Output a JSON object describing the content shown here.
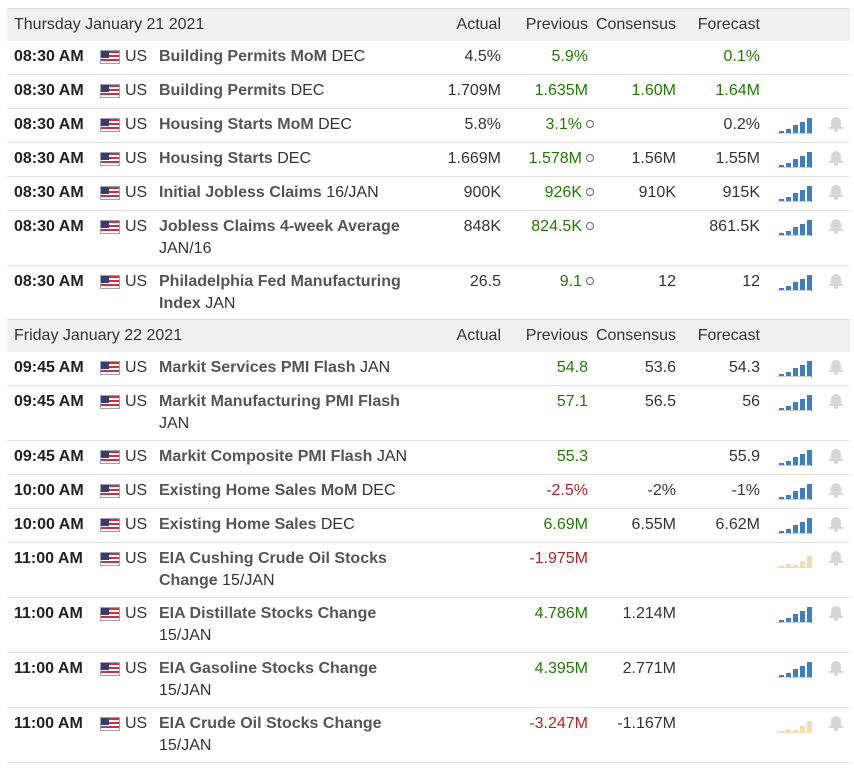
{
  "icons": {
    "flag": "us-flag-icon",
    "chart": "bar-chart-icon",
    "alert": "bell-icon",
    "revised": "revised-dot-icon"
  },
  "colors": {
    "positive": "#217a00",
    "negative": "#b22222",
    "header_bg": "#f0f0f0"
  },
  "days": [
    {
      "title": "Thursday January 21 2021",
      "headers": {
        "actual": "Actual",
        "previous": "Previous",
        "consensus": "Consensus",
        "forecast": "Forecast"
      },
      "events": [
        {
          "time": "08:30 AM",
          "country": "US",
          "name": "Building Permits MoM",
          "ref": "DEC",
          "actual": "4.5%",
          "previous": "5.9%",
          "prev_trend": "up",
          "revised": false,
          "consensus": "",
          "forecast": "0.1%",
          "fc_trend": "up",
          "chart": "none"
        },
        {
          "time": "08:30 AM",
          "country": "US",
          "name": "Building Permits",
          "ref": "DEC",
          "actual": "1.709M",
          "previous": "1.635M",
          "prev_trend": "up",
          "revised": false,
          "consensus": "1.60M",
          "cons_trend": "up",
          "forecast": "1.64M",
          "fc_trend": "up",
          "chart": "none"
        },
        {
          "time": "08:30 AM",
          "country": "US",
          "name": "Housing Starts MoM",
          "ref": "DEC",
          "actual": "5.8%",
          "previous": "3.1%",
          "prev_trend": "up",
          "revised": true,
          "consensus": "",
          "forecast": "0.2%",
          "chart": "blue"
        },
        {
          "time": "08:30 AM",
          "country": "US",
          "name": "Housing Starts",
          "ref": "DEC",
          "actual": "1.669M",
          "previous": "1.578M",
          "prev_trend": "up",
          "revised": true,
          "consensus": "1.56M",
          "forecast": "1.55M",
          "chart": "blue"
        },
        {
          "time": "08:30 AM",
          "country": "US",
          "name": "Initial Jobless Claims",
          "ref": "16/JAN",
          "actual": "900K",
          "previous": "926K",
          "prev_trend": "up",
          "revised": true,
          "consensus": "910K",
          "forecast": "915K",
          "chart": "blue"
        },
        {
          "time": "08:30 AM",
          "country": "US",
          "name": "Jobless Claims 4-week Average",
          "ref": "JAN/16",
          "actual": "848K",
          "previous": "824.5K",
          "prev_trend": "up",
          "revised": true,
          "consensus": "",
          "forecast": "861.5K",
          "chart": "blue"
        },
        {
          "time": "08:30 AM",
          "country": "US",
          "name": "Philadelphia Fed Manufacturing Index",
          "ref": "JAN",
          "actual": "26.5",
          "previous": "9.1",
          "prev_trend": "up",
          "revised": true,
          "consensus": "12",
          "forecast": "12",
          "chart": "blue"
        }
      ]
    },
    {
      "title": "Friday January 22 2021",
      "headers": {
        "actual": "Actual",
        "previous": "Previous",
        "consensus": "Consensus",
        "forecast": "Forecast"
      },
      "events": [
        {
          "time": "09:45 AM",
          "country": "US",
          "name": "Markit Services PMI Flash",
          "ref": "JAN",
          "actual": "",
          "previous": "54.8",
          "prev_trend": "up",
          "revised": false,
          "consensus": "53.6",
          "forecast": "54.3",
          "chart": "blue"
        },
        {
          "time": "09:45 AM",
          "country": "US",
          "name": "Markit Manufacturing PMI Flash",
          "ref": "JAN",
          "actual": "",
          "previous": "57.1",
          "prev_trend": "up",
          "revised": false,
          "consensus": "56.5",
          "forecast": "56",
          "chart": "blue"
        },
        {
          "time": "09:45 AM",
          "country": "US",
          "name": "Markit Composite PMI Flash",
          "ref": "JAN",
          "actual": "",
          "previous": "55.3",
          "prev_trend": "up",
          "revised": false,
          "consensus": "",
          "forecast": "55.9",
          "chart": "blue"
        },
        {
          "time": "10:00 AM",
          "country": "US",
          "name": "Existing Home Sales MoM",
          "ref": "DEC",
          "actual": "",
          "previous": "-2.5%",
          "prev_trend": "down",
          "revised": false,
          "consensus": "-2%",
          "forecast": "-1%",
          "chart": "blue"
        },
        {
          "time": "10:00 AM",
          "country": "US",
          "name": "Existing Home Sales",
          "ref": "DEC",
          "actual": "",
          "previous": "6.69M",
          "prev_trend": "up",
          "revised": false,
          "consensus": "6.55M",
          "forecast": "6.62M",
          "chart": "blue"
        },
        {
          "time": "11:00 AM",
          "country": "US",
          "name": "EIA Cushing Crude Oil Stocks Change",
          "ref": "15/JAN",
          "actual": "",
          "previous": "-1.975M",
          "prev_trend": "down",
          "revised": false,
          "consensus": "",
          "forecast": "",
          "chart": "tan"
        },
        {
          "time": "11:00 AM",
          "country": "US",
          "name": "EIA Distillate Stocks Change",
          "ref": "15/JAN",
          "actual": "",
          "previous": "4.786M",
          "prev_trend": "up",
          "revised": false,
          "consensus": "1.214M",
          "forecast": "",
          "chart": "blue"
        },
        {
          "time": "11:00 AM",
          "country": "US",
          "name": "EIA Gasoline Stocks Change",
          "ref": "15/JAN",
          "actual": "",
          "previous": "4.395M",
          "prev_trend": "up",
          "revised": false,
          "consensus": "2.771M",
          "forecast": "",
          "chart": "blue"
        },
        {
          "time": "11:00 AM",
          "country": "US",
          "name": "EIA Crude Oil Stocks Change",
          "ref": "15/JAN",
          "actual": "",
          "previous": "-3.247M",
          "prev_trend": "down",
          "revised": false,
          "consensus": "-1.167M",
          "forecast": "",
          "chart": "tan"
        }
      ]
    }
  ]
}
